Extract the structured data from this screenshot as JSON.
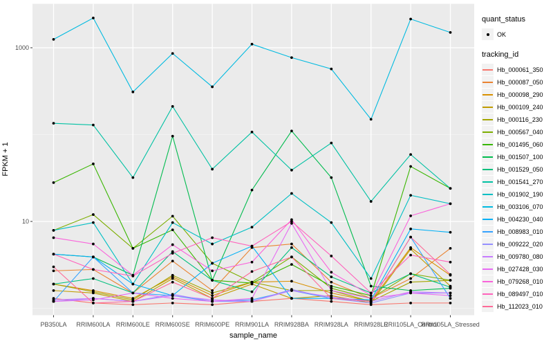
{
  "chart_data": {
    "type": "line",
    "title": "",
    "xlabel": "sample_name",
    "ylabel": "FPKM + 1",
    "scale_y": "log10",
    "yticks": [
      {
        "value": 1000,
        "label": "1000"
      },
      {
        "value": 10,
        "label": "10"
      }
    ],
    "minor_gridlines": [
      100,
      1
    ],
    "grid": "on",
    "legend_position": "right",
    "panel_bg": "#EBEBEB",
    "grid_color": "#FFFFFF",
    "tick_label_color": "#4D4D4D",
    "point_color": "#000000",
    "key_bg": "#F2F2F2",
    "categories": [
      "PB350LA",
      "RRIM600LA",
      "RRIM600LE",
      "RRIM600SE",
      "RRIM600PE",
      "RRIM901LA",
      "RRIM928BA",
      "RRIM928LA",
      "RRIM928LE",
      "RRII105LA_Control",
      "RRII105LA_Stressed"
    ],
    "legend": {
      "quant_title": "quant_status",
      "quant_items": [
        {
          "label": "OK",
          "symbol": "black-point"
        }
      ],
      "tracking_title": "tracking_id"
    },
    "series": [
      {
        "name": "Hb_000061_350",
        "color": "#F8766D",
        "values": [
          1.3,
          1.15,
          1.1,
          1.15,
          1.1,
          1.2,
          1.3,
          1.2,
          1.1,
          1.15,
          1.15
        ]
      },
      {
        "name": "Hb_000087_050",
        "color": "#EA8331",
        "values": [
          2.7,
          2.8,
          1.5,
          3.5,
          1.6,
          5.0,
          5.5,
          2.0,
          1.3,
          2.2,
          4.9
        ]
      },
      {
        "name": "Hb_000098_290",
        "color": "#D89000",
        "values": [
          1.9,
          1.6,
          1.3,
          2.3,
          1.4,
          2.0,
          2.05,
          1.5,
          1.2,
          5.0,
          2.4
        ]
      },
      {
        "name": "Hb_000109_240",
        "color": "#C09B00",
        "values": [
          1.6,
          1.5,
          1.2,
          2.2,
          1.3,
          1.9,
          1.3,
          1.4,
          1.15,
          4.8,
          1.8
        ]
      },
      {
        "name": "Hb_000116_230",
        "color": "#A3A500",
        "values": [
          1.9,
          1.55,
          1.25,
          2.4,
          1.5,
          2.0,
          1.6,
          1.6,
          1.2,
          2.0,
          2.1
        ]
      },
      {
        "name": "Hb_000567_040",
        "color": "#7CAE00",
        "values": [
          7.9,
          12.0,
          4.9,
          11.5,
          3.3,
          2.0,
          3.9,
          1.7,
          1.3,
          2.5,
          2.1
        ]
      },
      {
        "name": "Hb_001495_060",
        "color": "#39B600",
        "values": [
          28.0,
          46.0,
          4.9,
          8.0,
          2.1,
          1.95,
          3.2,
          1.8,
          1.4,
          43.0,
          24.0
        ]
      },
      {
        "name": "Hb_001507_100",
        "color": "#00BB4E",
        "values": [
          4.2,
          3.9,
          2.4,
          96.0,
          2.1,
          23.0,
          110,
          32.0,
          1.8,
          1.6,
          1.7
        ]
      },
      {
        "name": "Hb_001529_050",
        "color": "#00BF7D",
        "values": [
          1.9,
          2.2,
          1.5,
          4.5,
          2.1,
          1.55,
          5.0,
          2.3,
          1.5,
          2.5,
          1.75
        ]
      },
      {
        "name": "Hb_001541_270",
        "color": "#00C1A3",
        "values": [
          135,
          129,
          32.0,
          211,
          40.0,
          107,
          39.0,
          80.0,
          17.0,
          59.0,
          24.0
        ]
      },
      {
        "name": "Hb_001902_190",
        "color": "#00BFC4",
        "values": [
          7.9,
          9.7,
          1.9,
          9.7,
          5.5,
          8.6,
          21.0,
          9.7,
          2.2,
          20.0,
          16.0
        ]
      },
      {
        "name": "Hb_003106_070",
        "color": "#00BAE0",
        "values": [
          1250,
          2200,
          310,
          860,
          355,
          1100,
          770,
          570,
          150,
          2140,
          1500
        ]
      },
      {
        "name": "Hb_004230_040",
        "color": "#00B0F6",
        "values": [
          4.2,
          3.9,
          1.9,
          1.4,
          3.3,
          5.2,
          1.3,
          1.3,
          1.25,
          8.2,
          7.5
        ]
      },
      {
        "name": "Hb_008983_010",
        "color": "#35A2FF",
        "values": [
          1.2,
          3.9,
          1.5,
          1.4,
          1.2,
          1.25,
          1.6,
          1.3,
          1.2,
          6.6,
          1.3
        ]
      },
      {
        "name": "Hb_009222_020",
        "color": "#9590FF",
        "values": [
          1.2,
          1.3,
          1.2,
          1.45,
          1.2,
          1.2,
          1.65,
          1.3,
          1.15,
          1.5,
          1.5
        ]
      },
      {
        "name": "Hb_009780_080",
        "color": "#C77CFF",
        "values": [
          1.25,
          1.3,
          1.2,
          1.4,
          1.25,
          1.2,
          1.6,
          1.35,
          1.2,
          1.55,
          1.5
        ]
      },
      {
        "name": "Hb_027428_030",
        "color": "#E76BF3",
        "values": [
          1.2,
          1.25,
          1.5,
          1.3,
          1.2,
          1.3,
          9.5,
          1.6,
          1.3,
          1.5,
          1.4
        ]
      },
      {
        "name": "Hb_079268_010",
        "color": "#FA62DB",
        "values": [
          6.5,
          5.5,
          2.4,
          5.4,
          2.7,
          3.4,
          10.5,
          2.6,
          1.4,
          11.6,
          16.0
        ]
      },
      {
        "name": "Hb_089497_010",
        "color": "#FF62BC",
        "values": [
          4.2,
          2.8,
          2.35,
          4.3,
          6.5,
          5.2,
          10.0,
          4.0,
          1.5,
          4.1,
          3.4
        ]
      },
      {
        "name": "Hb_112023_010",
        "color": "#FF6A98",
        "values": [
          3.0,
          1.15,
          1.2,
          2.0,
          1.3,
          2.65,
          3.9,
          1.3,
          1.2,
          6.6,
          2.45
        ]
      }
    ]
  }
}
